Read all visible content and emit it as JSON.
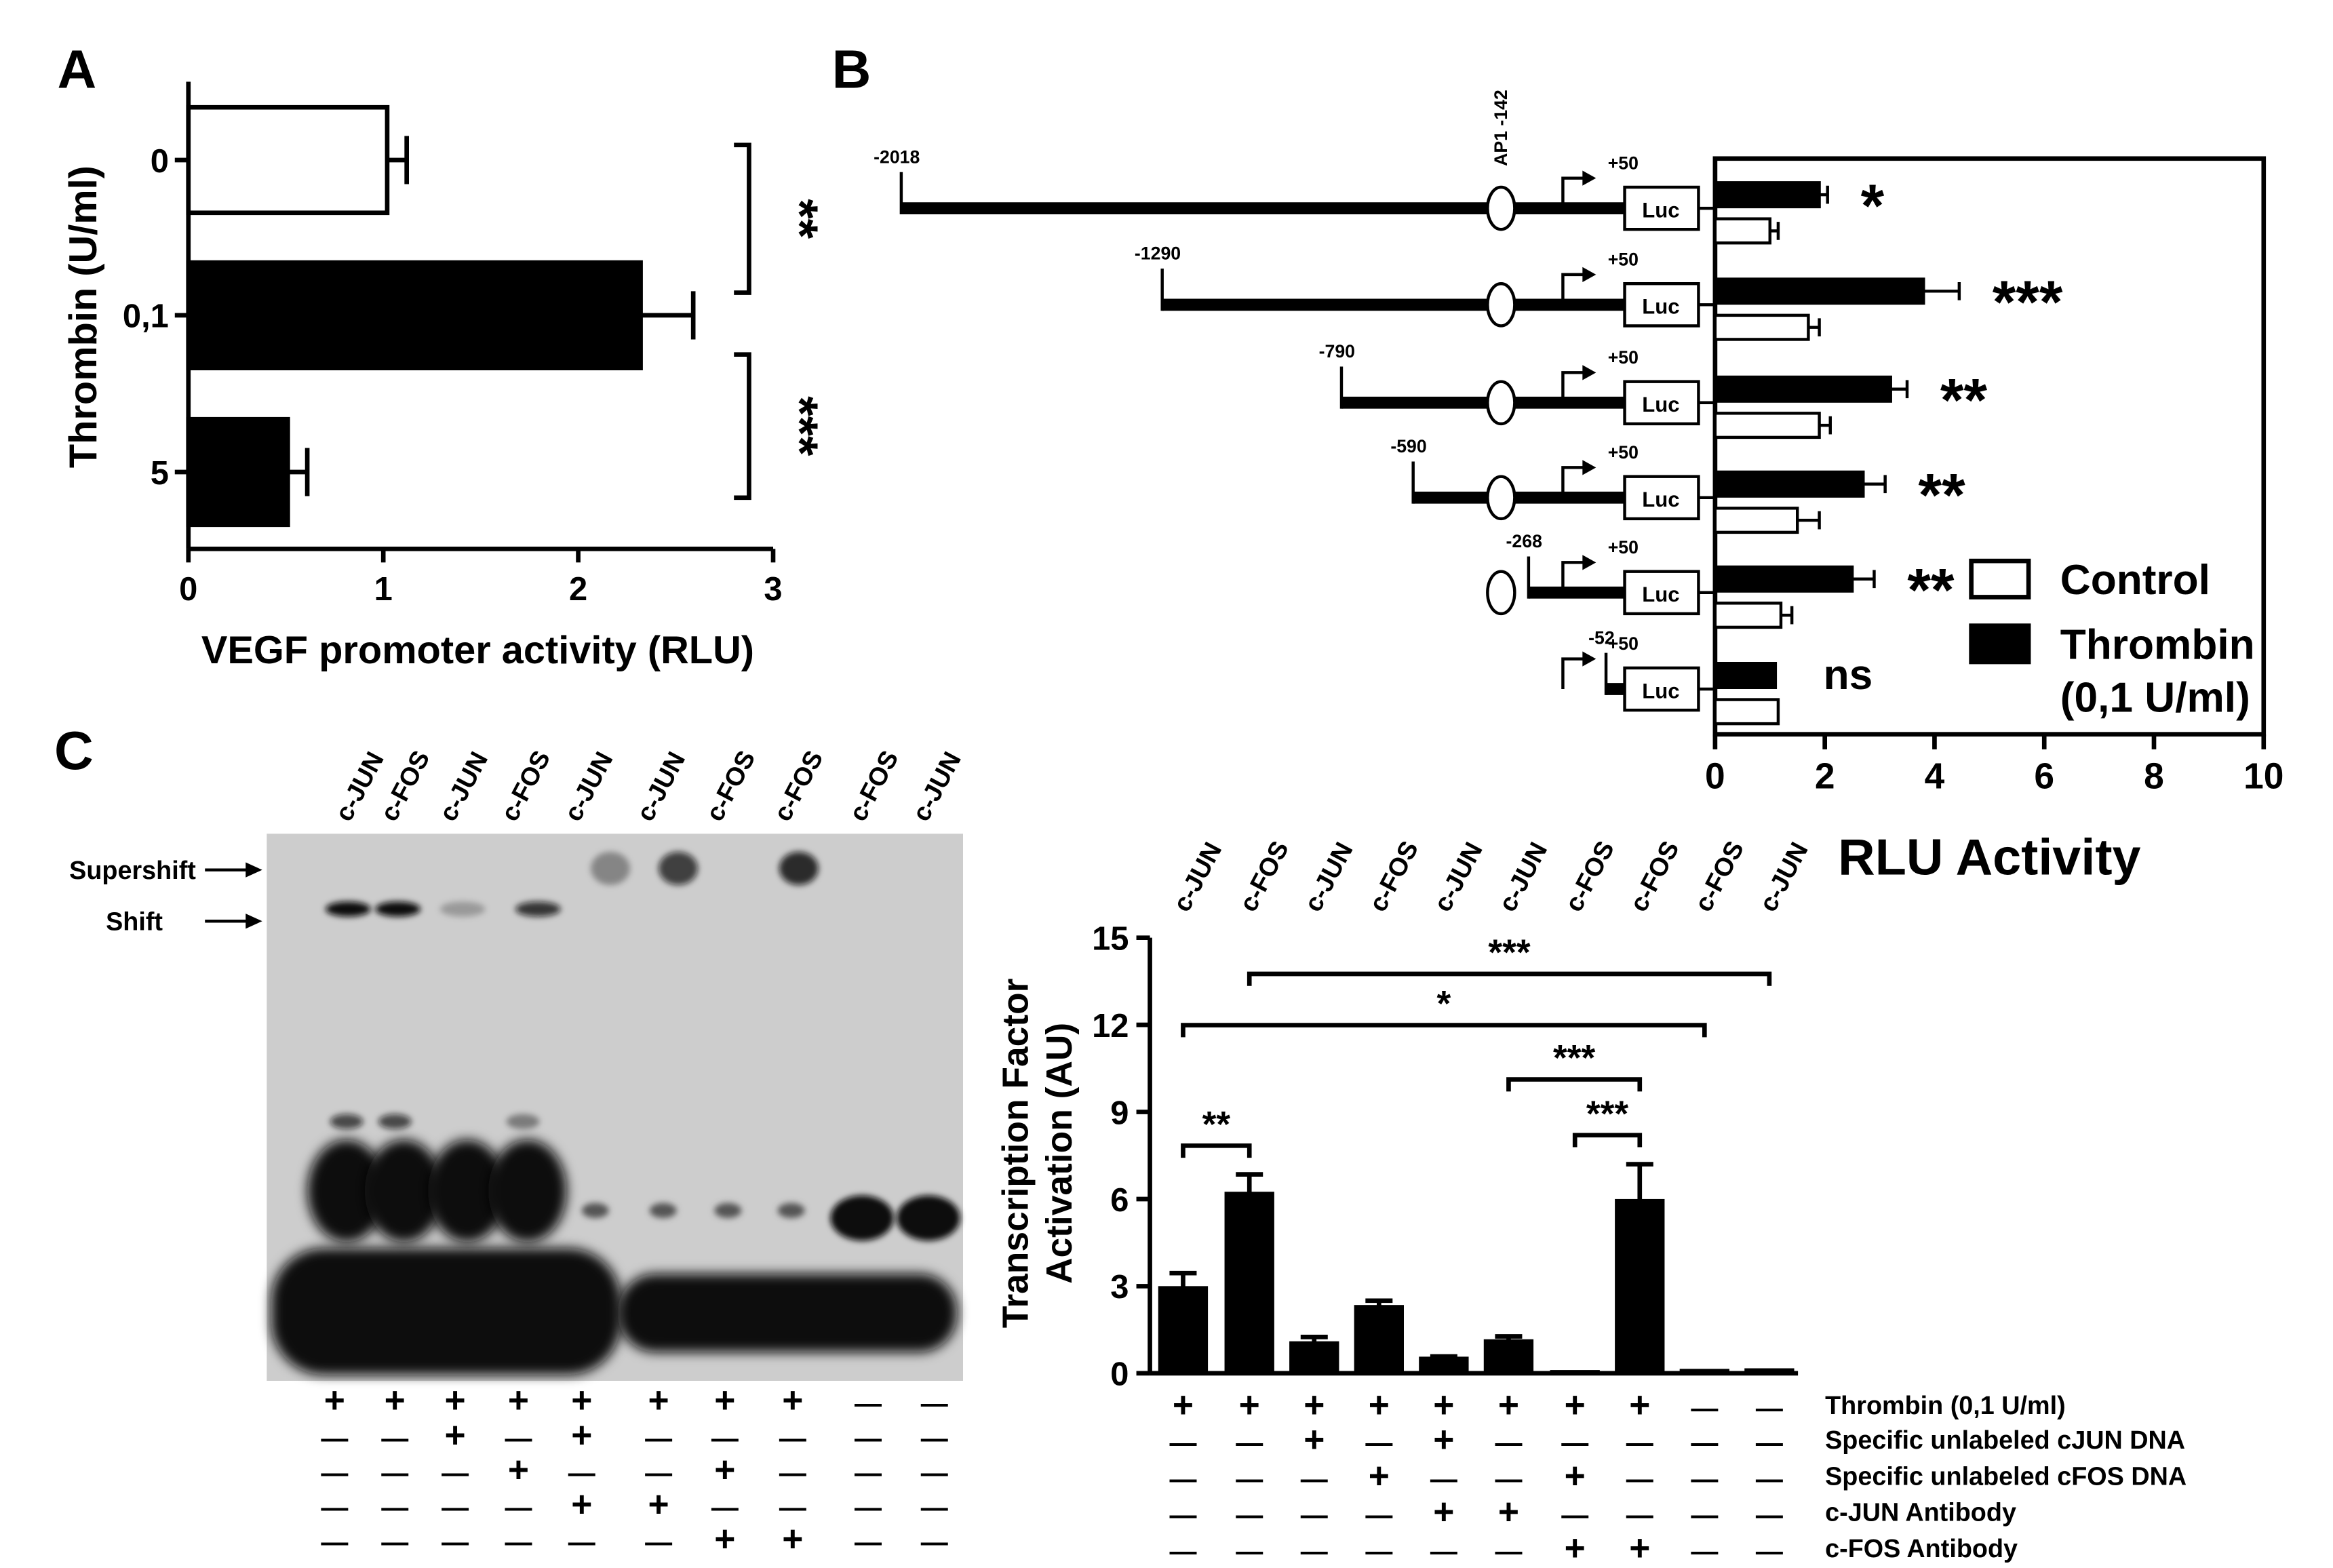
{
  "panel_labels": {
    "a": "A",
    "b": "B",
    "c": "C"
  },
  "colors": {
    "thrombin_fill": "#000000",
    "control_fill": "#ffffff",
    "gel_background": "#cdcdcd",
    "band": "#0a0a0a"
  },
  "chart_data": [
    {
      "panel": "A",
      "type": "bar",
      "orientation": "horizontal",
      "ylabel": "Thrombin (U/ml)",
      "xlabel": "VEGF promoter activity (RLU)",
      "categories": [
        "0",
        "0,1",
        "5"
      ],
      "values": [
        1.02,
        2.32,
        0.51
      ],
      "errors": [
        0.1,
        0.27,
        0.1
      ],
      "fills": [
        "white",
        "black",
        "black"
      ],
      "xlim": [
        0,
        3
      ],
      "xticks": [
        "0",
        "1",
        "2",
        "3"
      ],
      "significance": [
        {
          "from": "0",
          "to": "0,1",
          "label": "**"
        },
        {
          "from": "0,1",
          "to": "5",
          "label": "***"
        }
      ]
    },
    {
      "panel": "B",
      "type": "bar",
      "orientation": "horizontal",
      "xlabel": "RLU Activity",
      "xlim": [
        0,
        10
      ],
      "xticks": [
        "0",
        "2",
        "4",
        "6",
        "8",
        "10"
      ],
      "ap1_label": "AP1 -142",
      "reporter_label": "Luc",
      "constructs": [
        {
          "start": "-2018",
          "end": "+50",
          "has_ap1": true,
          "thrombin": 1.9,
          "thrombin_err": 0.15,
          "control": 1.0,
          "control_err": 0.15,
          "sig": "*"
        },
        {
          "start": "-1290",
          "end": "+50",
          "has_ap1": true,
          "thrombin": 3.8,
          "thrombin_err": 0.65,
          "control": 1.7,
          "control_err": 0.2,
          "sig": "***"
        },
        {
          "start": "-790",
          "end": "+50",
          "has_ap1": true,
          "thrombin": 3.2,
          "thrombin_err": 0.3,
          "control": 1.9,
          "control_err": 0.2,
          "sig": "**"
        },
        {
          "start": "-590",
          "end": "+50",
          "has_ap1": true,
          "thrombin": 2.7,
          "thrombin_err": 0.4,
          "control": 1.5,
          "control_err": 0.4,
          "sig": "**"
        },
        {
          "start": "-268",
          "end": "+50",
          "has_ap1": true,
          "thrombin": 2.5,
          "thrombin_err": 0.4,
          "control": 1.2,
          "control_err": 0.2,
          "sig": "**"
        },
        {
          "start": "-52",
          "end": "+50",
          "has_ap1": false,
          "thrombin": 1.1,
          "thrombin_err": 0.0,
          "control": 1.15,
          "control_err": 0.0,
          "sig": "ns"
        }
      ],
      "legend": {
        "placement": "bottom-right",
        "entries": [
          {
            "label": "Control",
            "fill": "white"
          },
          {
            "label": "Thrombin",
            "fill": "black",
            "sub": "(0,1 U/ml)"
          }
        ]
      }
    },
    {
      "panel": "C",
      "type": "bar",
      "ylabel_lines": [
        "Transcription Factor",
        "Activation (AU)"
      ],
      "ylim": [
        0,
        15
      ],
      "yticks": [
        "0",
        "3",
        "6",
        "9",
        "12",
        "15"
      ],
      "categories": [
        "c-JUN",
        "c-FOS",
        "c-JUN",
        "c-FOS",
        "c-JUN",
        "c-JUN",
        "c-FOS",
        "c-FOS",
        "c-FOS",
        "c-JUN"
      ],
      "values": [
        2.95,
        6.2,
        1.05,
        2.3,
        0.52,
        1.12,
        0.06,
        5.95,
        0.1,
        0.12
      ],
      "errors": [
        0.5,
        0.65,
        0.2,
        0.2,
        0.06,
        0.15,
        0.0,
        1.25,
        0.0,
        0.0
      ],
      "significance": [
        {
          "from": 2,
          "to": 10,
          "label": "***"
        },
        {
          "from": 1,
          "to": 9,
          "label": "*"
        },
        {
          "from": 6,
          "to": 8,
          "label": "***"
        },
        {
          "from": 7,
          "to": 8,
          "label": "***"
        },
        {
          "from": 1,
          "to": 2,
          "label": "**"
        }
      ],
      "conditions": [
        {
          "label": "Thrombin (0,1 U/ml)",
          "marks": [
            "+",
            "+",
            "+",
            "+",
            "+",
            "+",
            "+",
            "+",
            "—",
            "—"
          ]
        },
        {
          "label": "Specific unlabeled cJUN DNA",
          "marks": [
            "—",
            "—",
            "+",
            "—",
            "+",
            "—",
            "—",
            "—",
            "—",
            "—"
          ]
        },
        {
          "label": "Specific unlabeled cFOS DNA",
          "marks": [
            "—",
            "—",
            "—",
            "+",
            "—",
            "—",
            "+",
            "—",
            "—",
            "—"
          ]
        },
        {
          "label": "c-JUN Antibody",
          "marks": [
            "—",
            "—",
            "—",
            "—",
            "+",
            "+",
            "—",
            "—",
            "—",
            "—"
          ]
        },
        {
          "label": "c-FOS Antibody",
          "marks": [
            "—",
            "—",
            "—",
            "—",
            "—",
            "—",
            "+",
            "+",
            "—",
            "—"
          ]
        }
      ]
    }
  ],
  "gel": {
    "lane_labels": [
      "c-JUN",
      "c-FOS",
      "c-JUN",
      "c-FOS",
      "c-JUN",
      "c-JUN",
      "c-FOS",
      "c-FOS",
      "c-FOS",
      "c-JUN"
    ],
    "supershift_label": "Supershift",
    "shift_label": "Shift",
    "conditions": [
      [
        "+",
        "+",
        "+",
        "+",
        "+",
        "+",
        "+",
        "+",
        "—",
        "—"
      ],
      [
        "—",
        "—",
        "+",
        "—",
        "+",
        "—",
        "—",
        "—",
        "—",
        "—"
      ],
      [
        "—",
        "—",
        "—",
        "+",
        "—",
        "—",
        "+",
        "—",
        "—",
        "—"
      ],
      [
        "—",
        "—",
        "—",
        "—",
        "+",
        "+",
        "—",
        "—",
        "—",
        "—"
      ],
      [
        "—",
        "—",
        "—",
        "—",
        "—",
        "—",
        "+",
        "+",
        "—",
        "—"
      ]
    ]
  }
}
